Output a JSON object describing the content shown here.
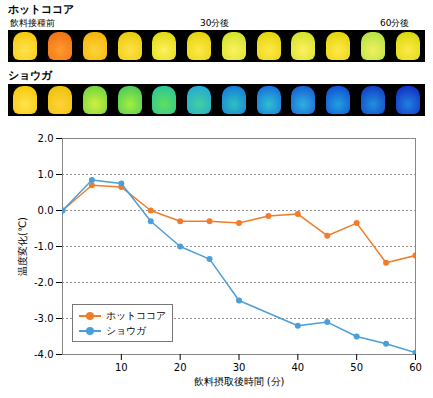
{
  "chart_data": {
    "type": "line",
    "annotations": [
      "ホットココア",
      "飲料接種前",
      "30分後",
      "60分後",
      "ショウガ"
    ],
    "xlabel": "飲料摂取後時間 (分)",
    "ylabel": "温度変化(℃)",
    "series": [
      {
        "name": "ホットココア",
        "color": "#f07d2a",
        "marker": "circle",
        "x": [
          0,
          5,
          10,
          15,
          20,
          25,
          30,
          35,
          40,
          45,
          50,
          55,
          60
        ],
        "values": [
          0,
          0.7,
          0.65,
          0.0,
          -0.3,
          -0.3,
          -0.35,
          -0.15,
          -0.1,
          -0.7,
          -0.35,
          -1.45,
          -1.25
        ]
      },
      {
        "name": "ショウガ",
        "color": "#4a9fd8",
        "marker": "circle",
        "x": [
          0,
          5,
          10,
          15,
          20,
          25,
          30,
          40,
          45,
          50,
          55,
          60
        ],
        "values": [
          0,
          0.85,
          0.75,
          -0.3,
          -1.0,
          -1.35,
          -2.5,
          -3.2,
          -3.1,
          -3.5,
          -3.7,
          -3.95
        ]
      }
    ],
    "xlim": [
      0,
      60
    ],
    "xticks": [
      10,
      20,
      30,
      40,
      50,
      60
    ],
    "ylim": [
      -4,
      2
    ],
    "yticks": [
      {
        "value": -4,
        "label": "-4.0"
      },
      {
        "value": -3,
        "label": "-3.0"
      },
      {
        "value": -2,
        "label": "-2.0"
      },
      {
        "value": -1,
        "label": "-1.0"
      },
      {
        "value": 0,
        "label": "0.0"
      },
      {
        "value": 1,
        "label": "1.0"
      },
      {
        "value": 2,
        "label": "2.0"
      }
    ],
    "grid": true,
    "legend": "lower left"
  }
}
